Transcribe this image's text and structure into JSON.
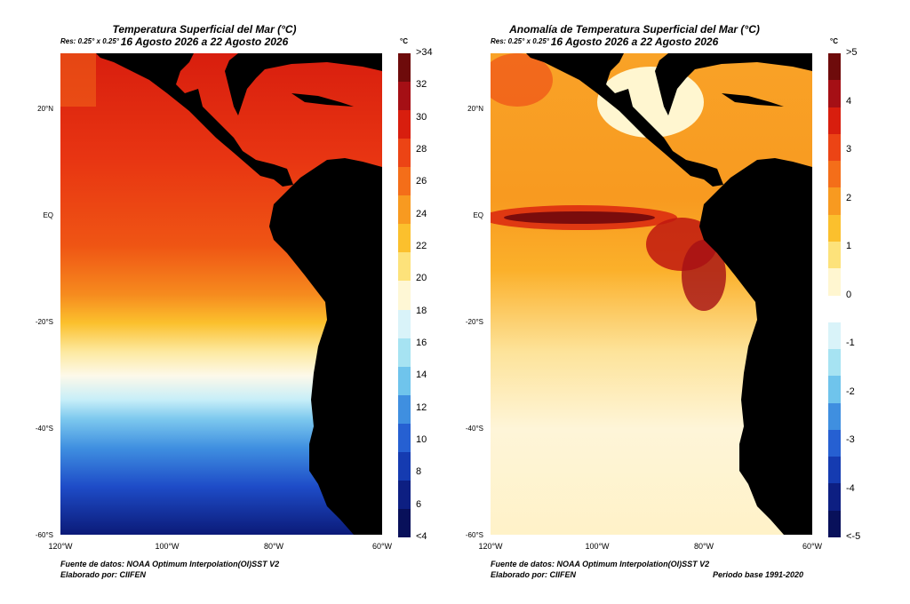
{
  "left": {
    "title_line1": "Temperatura Superficial del Mar (°C)",
    "title_line2": "16 Agosto 2026 a 22 Agosto 2026",
    "resolution": "Res: 0.25° x 0.25°",
    "unit": "°C",
    "colorbar_labels": [
      ">34",
      "32",
      "30",
      "28",
      "26",
      "24",
      "22",
      "20",
      "18",
      "16",
      "14",
      "12",
      "10",
      "8",
      "6",
      "<4"
    ],
    "colorbar_colors": [
      "#6e0b0b",
      "#a50f15",
      "#d81e0e",
      "#ec4415",
      "#f46e19",
      "#f89a20",
      "#fbc02d",
      "#fde27a",
      "#fef7d5",
      "#d9f3f9",
      "#a6e3f2",
      "#6fc4ec",
      "#3f8fe0",
      "#2660d2",
      "#153bb1",
      "#0d1f82",
      "#08105a"
    ],
    "footer_line1": "Fuente de datos: NOAA Optimum Interpolation(OI)SST V2",
    "footer_line2": "Elaborado por: CIIFEN"
  },
  "right": {
    "title_line1": "Anomalía de Temperatura Superficial del Mar (°C)",
    "title_line2": "16 Agosto 2026 a 22 Agosto 2026",
    "resolution": "Res: 0.25° x 0.25°",
    "unit": "°C",
    "colorbar_labels": [
      ">5",
      "4",
      "3",
      "2",
      "1",
      "0",
      "-1",
      "-2",
      "-3",
      "-4",
      "<-5"
    ],
    "colorbar_colors": [
      "#6e0b0b",
      "#a50f15",
      "#d81e0e",
      "#ec4415",
      "#f46e19",
      "#f89a20",
      "#fbc02d",
      "#fde27a",
      "#fff6d0",
      "#ffffff",
      "#d9f3f9",
      "#a6e3f2",
      "#6fc4ec",
      "#3f8fe0",
      "#2660d2",
      "#153bb1",
      "#0d1f82",
      "#08105a"
    ],
    "footer_line1": "Fuente de datos: NOAA Optimum Interpolation(OI)SST V2",
    "footer_line2": "Elaborado por: CIIFEN",
    "footer_base": "Periodo base 1991-2020"
  },
  "lat_labels": [
    "20°N",
    "EQ",
    "-20°S",
    "-40°S",
    "-60°S"
  ],
  "lon_labels": [
    "120°W",
    "100°W",
    "80°W",
    "60°W"
  ],
  "colors": {
    "land": "#000000"
  }
}
